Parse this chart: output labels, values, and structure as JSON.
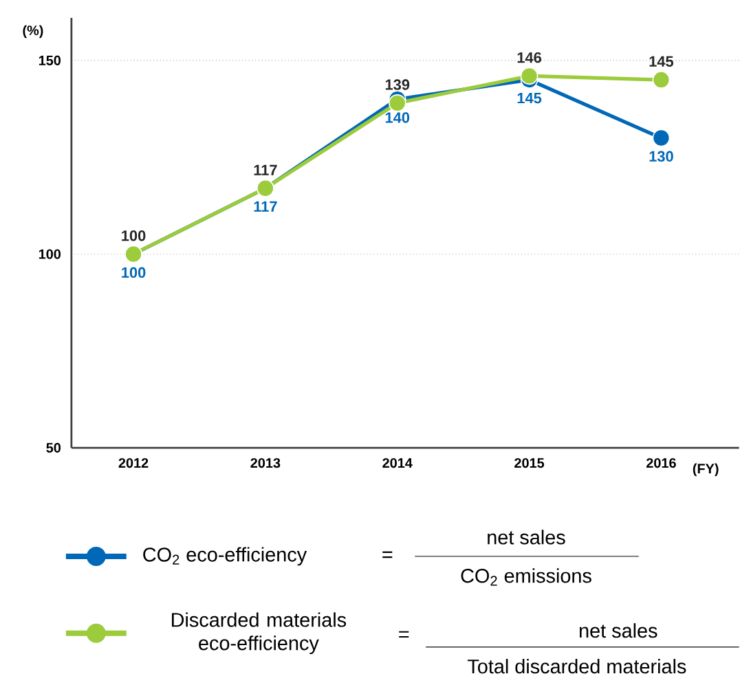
{
  "chart_data": {
    "type": "line",
    "xlabel": "(FY)",
    "ylabel": "(%)",
    "categories": [
      "2012",
      "2013",
      "2014",
      "2015",
      "2016"
    ],
    "series": [
      {
        "name": "CO$_{2}$ eco-efficiency",
        "color": "#0068b7",
        "values": [
          100,
          117,
          140,
          145,
          130
        ]
      },
      {
        "name": "Discarded materials eco-efficiency",
        "color": "#9ccb3c",
        "values": [
          100,
          117,
          139,
          146,
          145
        ]
      }
    ],
    "ylim": [
      50,
      161
    ],
    "yticks": [
      50,
      100,
      150
    ],
    "grid": "y",
    "legend": "bottom",
    "marker": "circle",
    "line_style": "solid",
    "data_labels": true,
    "annotations": [
      "=",
      "net sales",
      "CO$_{2}$ emissions",
      "=",
      "net sales",
      "Total discarded materials"
    ]
  }
}
